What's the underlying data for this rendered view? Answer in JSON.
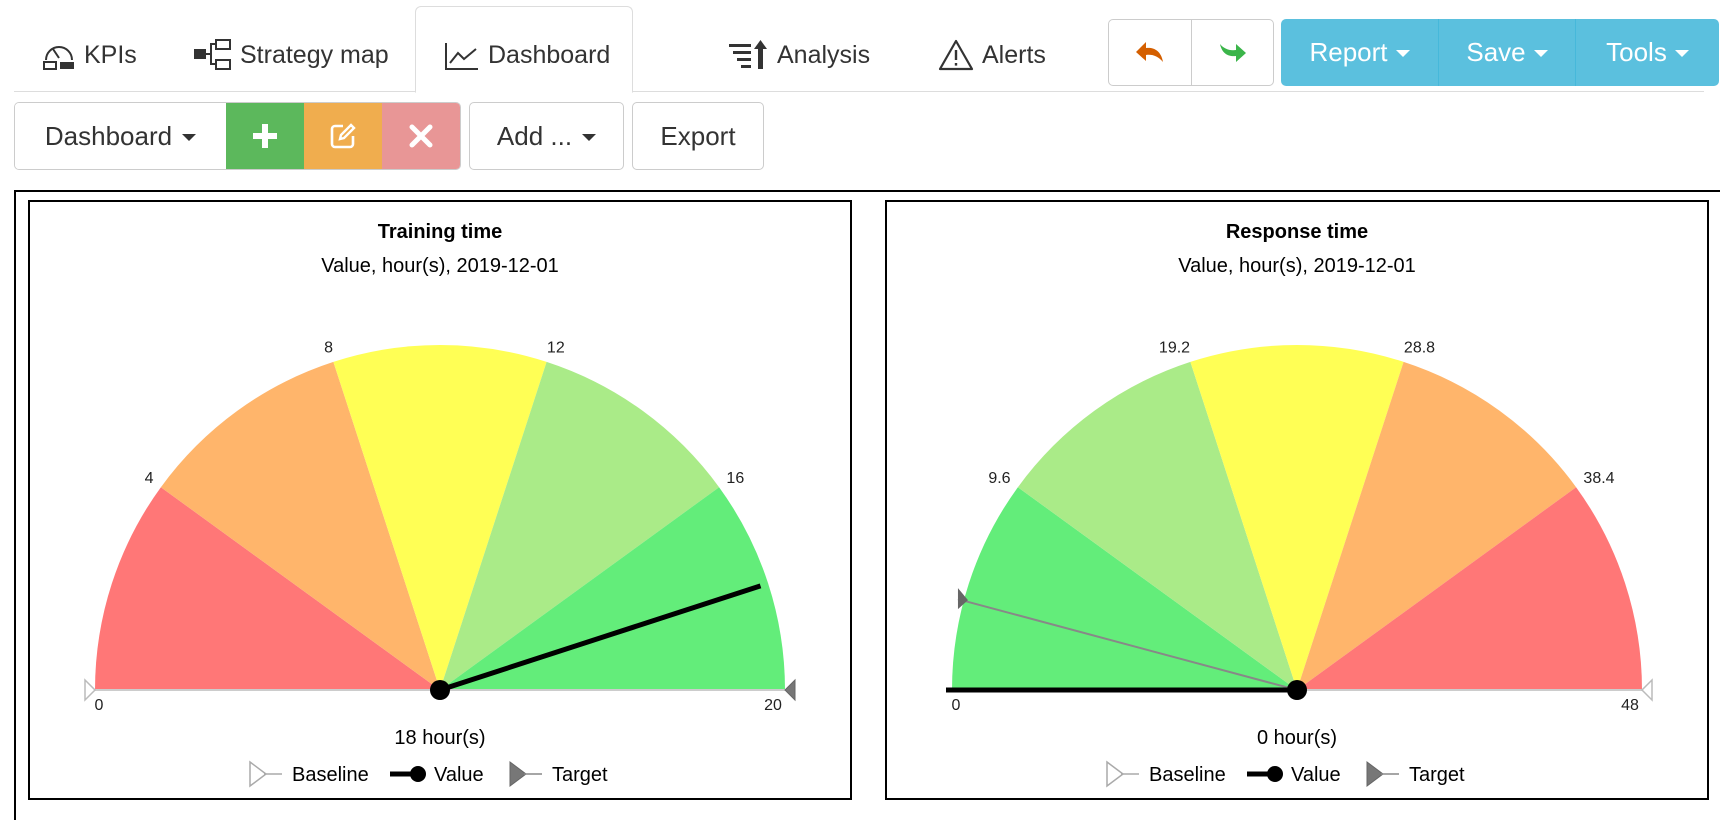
{
  "nav": {
    "tabs": [
      {
        "label": "KPIs",
        "icon": "kpi-gauge-icon"
      },
      {
        "label": "Strategy map",
        "icon": "strategy-map-icon"
      },
      {
        "label": "Dashboard",
        "icon": "line-chart-icon",
        "active": true
      },
      {
        "label": "Analysis",
        "icon": "analysis-sort-icon"
      },
      {
        "label": "Alerts",
        "icon": "warning-triangle-icon"
      }
    ],
    "undo_icon": "undo-arrow-icon",
    "redo_icon": "redo-arrow-icon",
    "menus": [
      {
        "label": "Report"
      },
      {
        "label": "Save"
      },
      {
        "label": "Tools"
      }
    ],
    "menu_color": "#5bc0de"
  },
  "toolbar": {
    "dashboard_label": "Dashboard",
    "add_label": "Add ...",
    "export_label": "Export",
    "add_button_color": "#5cb85c",
    "edit_button_color": "#f0ad4e",
    "delete_button_color": "#e89696"
  },
  "gauges": [
    {
      "title": "Training time",
      "subtitle": "Value, hour(s), 2019-12-01",
      "min": 0,
      "max": 20,
      "ticks": [
        "0",
        "4",
        "8",
        "12",
        "16",
        "20"
      ],
      "tick_values": [
        0,
        4,
        8,
        12,
        16,
        20
      ],
      "band_colors": [
        "#ff7777",
        "#ffb56b",
        "#ffff55",
        "#aaeb88",
        "#63ed7a"
      ],
      "value": 18,
      "target": null,
      "value_label": "18 hour(s)"
    },
    {
      "title": "Response time",
      "subtitle": "Value, hour(s), 2019-12-01",
      "min": 0,
      "max": 48,
      "ticks": [
        "0",
        "9.6",
        "19.2",
        "28.8",
        "38.4",
        "48"
      ],
      "tick_values": [
        0,
        9.6,
        19.2,
        28.8,
        38.4,
        48
      ],
      "band_colors": [
        "#63ed7a",
        "#aaeb88",
        "#ffff55",
        "#ffb56b",
        "#ff7777"
      ],
      "value": 0,
      "target": 4,
      "value_label": "0 hour(s)"
    }
  ],
  "legend": {
    "baseline": "Baseline",
    "value": "Value",
    "target": "Target"
  }
}
